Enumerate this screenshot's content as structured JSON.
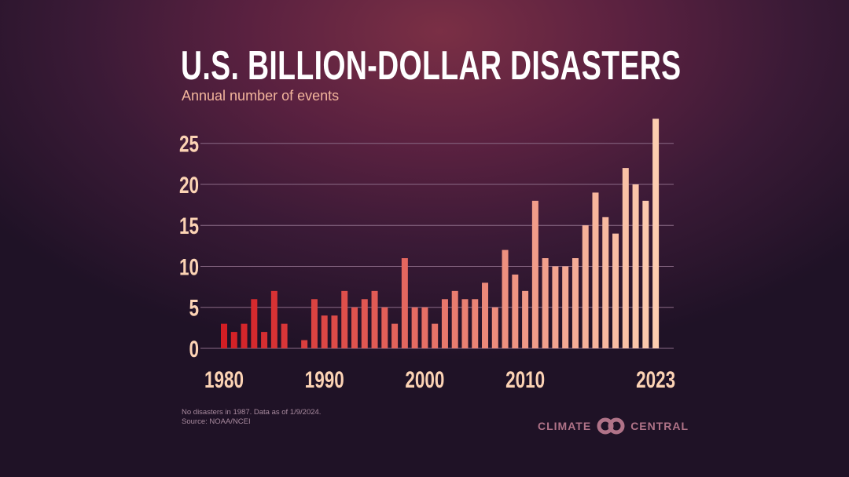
{
  "chart_data": {
    "type": "bar",
    "title": "U.S. BILLION-DOLLAR DISASTERS",
    "subtitle": "Annual number of events",
    "categories": [
      1980,
      1981,
      1982,
      1983,
      1984,
      1985,
      1986,
      1987,
      1988,
      1989,
      1990,
      1991,
      1992,
      1993,
      1994,
      1995,
      1996,
      1997,
      1998,
      1999,
      2000,
      2001,
      2002,
      2003,
      2004,
      2005,
      2006,
      2007,
      2008,
      2009,
      2010,
      2011,
      2012,
      2013,
      2014,
      2015,
      2016,
      2017,
      2018,
      2019,
      2020,
      2021,
      2022,
      2023
    ],
    "values": [
      3,
      2,
      3,
      6,
      2,
      7,
      3,
      0,
      1,
      6,
      4,
      4,
      7,
      5,
      6,
      7,
      5,
      3,
      11,
      5,
      5,
      3,
      6,
      7,
      6,
      6,
      8,
      5,
      12,
      9,
      7,
      18,
      11,
      10,
      10,
      11,
      15,
      19,
      16,
      14,
      22,
      20,
      18,
      28
    ],
    "xlabel": "",
    "ylabel": "",
    "ylim": [
      0,
      28
    ],
    "y_ticks": [
      "0",
      "5",
      "10",
      "15",
      "20",
      "25"
    ],
    "x_ticks": [
      "1980",
      "1990",
      "2000",
      "2010",
      "2023"
    ],
    "grid": true,
    "colors": {
      "start": "#d21e24",
      "end": "#fdcdb0",
      "grid": "#8a6a86",
      "tick_label": "#fcd3b4"
    }
  },
  "footer": {
    "note": "No disasters in 1987. Data as of 1/9/2024.",
    "source": "Source: NOAA/NCEI",
    "logo_left": "CLIMATE",
    "logo_right": "CENTRAL"
  }
}
